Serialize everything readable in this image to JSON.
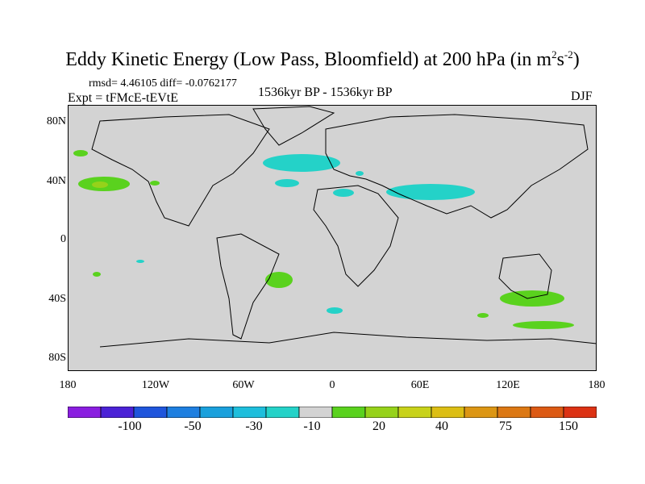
{
  "title": {
    "main": "Eddy Kinetic Energy (Low Pass, Bloomfield) at 200 hPa (in m",
    "sup1": "2",
    "mid": "s",
    "sup2": "-2",
    "end": ")"
  },
  "stats": "rmsd= 4.46105 diff= -0.0762177",
  "expt": "Expt = tFMcE-tEVtE",
  "period": "1536kyr BP - 1536kyr BP",
  "season": "DJF",
  "map": {
    "lat_labels": [
      "80N",
      "40N",
      "0",
      "40S",
      "80S"
    ],
    "lon_labels": [
      "180",
      "120W",
      "60W",
      "0",
      "60E",
      "120E",
      "180"
    ],
    "ocean_color": "#d3d3d3",
    "coast_color": "#000000"
  },
  "colorbar": {
    "colors": [
      "#8a1ee0",
      "#4b22d6",
      "#1f55dc",
      "#1e7fe0",
      "#1aa0dc",
      "#1ebedc",
      "#24d2c8",
      "#d3d3d3",
      "#5ad21e",
      "#96d21a",
      "#c8d21a",
      "#dcbe14",
      "#dc9614",
      "#dc7814",
      "#dc5a14",
      "#dc3214"
    ],
    "labels": [
      "-100",
      "-50",
      "-30",
      "-10",
      "20",
      "40",
      "75",
      "150"
    ]
  }
}
